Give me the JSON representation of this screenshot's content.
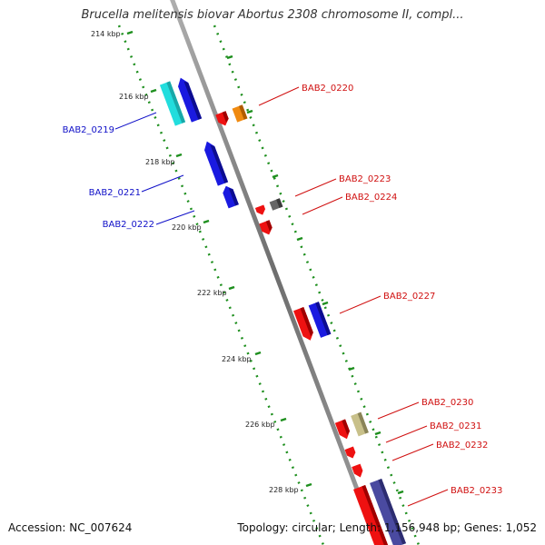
{
  "title": "Brucella melitensis biovar Abortus 2308 chromosome II, compl...",
  "footer": {
    "accession": "Accession: NC_007624",
    "topology": "Topology: circular; Length: 1,156,948 bp; Genes: 1,052"
  },
  "scale_labels": [
    "214 kbp",
    "216 kbp",
    "218 kbp",
    "220 kbp",
    "222 kbp",
    "224 kbp",
    "226 kbp",
    "228 kbp"
  ],
  "colors": {
    "backbone": "#888888",
    "tick": "#1e8f1e",
    "reverse_label": "#1010c8",
    "forward_label": "#d01010",
    "gene_red": "#ee1111",
    "gene_blue": "#1a1ae0",
    "gene_cyan": "#22dddd",
    "gene_orange": "#f08a10",
    "gene_gray": "#666666",
    "gene_khaki": "#c8c08a",
    "gene_slate": "#4a4aa0"
  },
  "gene_labels": {
    "reverse": [
      "BAB2_0219",
      "BAB2_0221",
      "BAB2_0222"
    ],
    "forward": [
      "BAB2_0220",
      "BAB2_0223",
      "BAB2_0224",
      "BAB2_0227",
      "BAB2_0230",
      "BAB2_0231",
      "BAB2_0232",
      "BAB2_0233"
    ]
  }
}
